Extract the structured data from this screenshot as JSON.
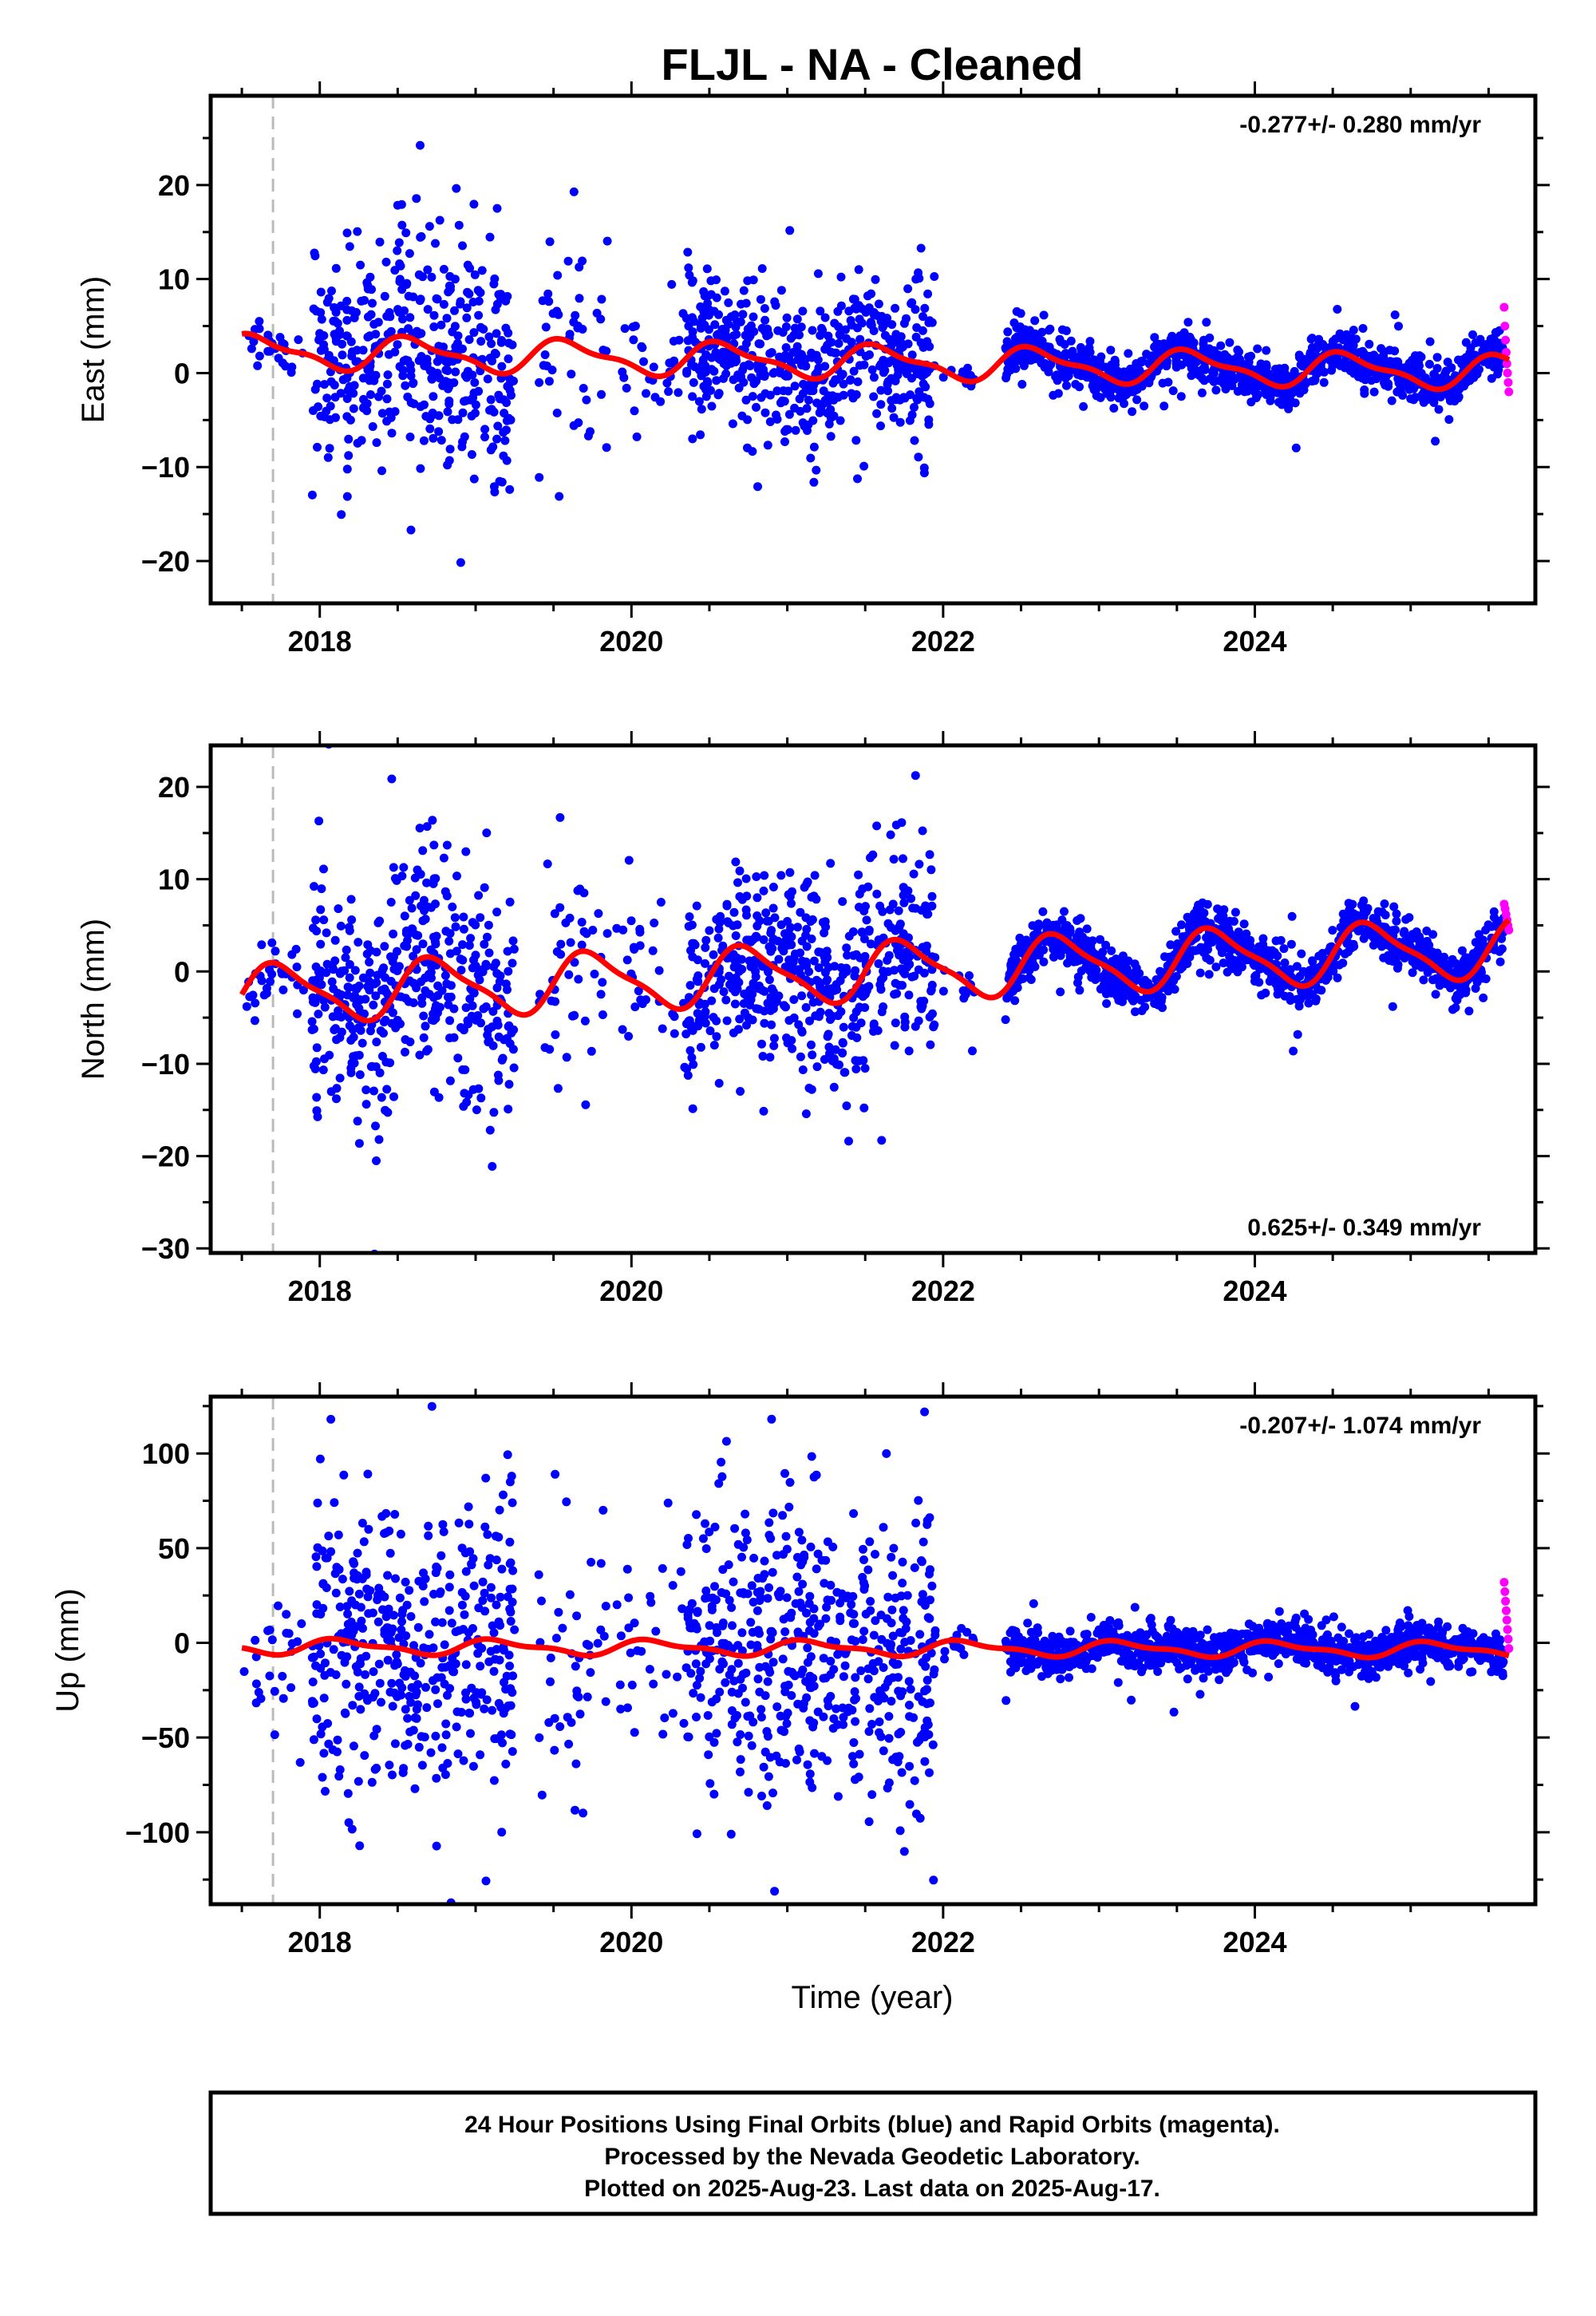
{
  "title": "FLJL  - NA - Cleaned",
  "xlabel": "Time (year)",
  "footer": {
    "line1": "24 Hour Positions Using Final Orbits (blue) and Rapid Orbits (magenta).",
    "line2": "Processed by the Nevada Geodetic Laboratory.",
    "line3": "Plotted on 2025-Aug-23. Last data on 2025-Aug-17."
  },
  "colors": {
    "final": "#0000ff",
    "rapid": "#ff00ff",
    "fit": "#ff0000",
    "marker": "#bbbbbb"
  },
  "chart_data": [
    {
      "type": "scatter",
      "name": "east",
      "ylabel": "East (mm)",
      "rate": "-0.277+/- 0.280 mm/yr",
      "rate_position": "top-right",
      "xlim": [
        2017.3,
        2025.8
      ],
      "ylim": [
        -24.5,
        29.5
      ],
      "xticks": [
        2018,
        2020,
        2022,
        2024
      ],
      "yticks": [
        -20,
        -10,
        0,
        10,
        20
      ],
      "marker_year": 2017.7,
      "fit": {
        "offset": 2.3,
        "trend": -0.277,
        "annual": 1.6,
        "annual_phase": 0.35,
        "semiannual": 0.6
      },
      "segments": [
        {
          "start": 2017.5,
          "end": 2017.9,
          "n": 25,
          "scatter": 1.4
        },
        {
          "start": 2017.95,
          "end": 2019.25,
          "n": 420,
          "scatter": 5.5
        },
        {
          "start": 2019.4,
          "end": 2019.85,
          "n": 45,
          "scatter": 6.5
        },
        {
          "start": 2019.9,
          "end": 2020.35,
          "n": 30,
          "scatter": 3.5
        },
        {
          "start": 2020.35,
          "end": 2021.95,
          "n": 520,
          "scatter": 4.0
        },
        {
          "start": 2022.0,
          "end": 2022.2,
          "n": 12,
          "scatter": 1.5
        },
        {
          "start": 2022.4,
          "end": 2025.6,
          "n": 1100,
          "scatter": 1.2
        }
      ],
      "rapid": {
        "start": 2025.6,
        "end": 2025.63,
        "values": [
          7.0,
          5.0,
          3.5,
          2.2,
          1.0,
          0.0,
          -1.0,
          -2.0
        ]
      }
    },
    {
      "type": "scatter",
      "name": "north",
      "ylabel": "North (mm)",
      "rate": "0.625+/- 0.349 mm/yr",
      "rate_position": "bottom-right",
      "xlim": [
        2017.3,
        2025.8
      ],
      "ylim": [
        -30.5,
        24.5
      ],
      "xticks": [
        2018,
        2020,
        2022,
        2024
      ],
      "yticks": [
        -30,
        -20,
        -10,
        0,
        10,
        20
      ],
      "marker_year": 2017.7,
      "fit": {
        "offset": -2.5,
        "trend": 0.625,
        "annual": 3.0,
        "annual_phase": 0.5,
        "semiannual": 0.8
      },
      "segments": [
        {
          "start": 2017.5,
          "end": 2017.9,
          "n": 30,
          "scatter": 1.8
        },
        {
          "start": 2017.95,
          "end": 2019.25,
          "n": 430,
          "scatter": 6.0
        },
        {
          "start": 2019.4,
          "end": 2019.85,
          "n": 45,
          "scatter": 7.0
        },
        {
          "start": 2019.9,
          "end": 2020.35,
          "n": 30,
          "scatter": 4.0
        },
        {
          "start": 2020.35,
          "end": 2021.95,
          "n": 540,
          "scatter": 5.0
        },
        {
          "start": 2022.0,
          "end": 2022.2,
          "n": 12,
          "scatter": 1.5
        },
        {
          "start": 2022.4,
          "end": 2025.6,
          "n": 1100,
          "scatter": 1.3
        }
      ],
      "rapid": {
        "start": 2025.6,
        "end": 2025.63,
        "values": [
          7.3,
          6.8,
          6.2,
          5.6,
          5.0,
          4.5
        ]
      }
    },
    {
      "type": "scatter",
      "name": "up",
      "ylabel": "Up (mm)",
      "rate": "-0.207+/- 1.074 mm/yr",
      "rate_position": "top-right",
      "xlim": [
        2017.3,
        2025.8
      ],
      "ylim": [
        -138,
        130
      ],
      "xticks": [
        2018,
        2020,
        2022,
        2024
      ],
      "yticks": [
        -100,
        -50,
        0,
        50,
        100
      ],
      "marker_year": 2017.7,
      "fit": {
        "offset": -2.0,
        "trend": -0.207,
        "annual": 3.5,
        "annual_phase": 0.9,
        "semiannual": 1.5
      },
      "segments": [
        {
          "start": 2017.5,
          "end": 2017.9,
          "n": 25,
          "scatter": 18
        },
        {
          "start": 2017.95,
          "end": 2019.25,
          "n": 420,
          "scatter": 38
        },
        {
          "start": 2019.4,
          "end": 2019.85,
          "n": 45,
          "scatter": 45
        },
        {
          "start": 2019.9,
          "end": 2020.35,
          "n": 30,
          "scatter": 30
        },
        {
          "start": 2020.35,
          "end": 2021.95,
          "n": 520,
          "scatter": 38
        },
        {
          "start": 2022.0,
          "end": 2022.2,
          "n": 12,
          "scatter": 5
        },
        {
          "start": 2022.4,
          "end": 2025.6,
          "n": 1100,
          "scatter": 5.5
        }
      ],
      "rapid": {
        "start": 2025.6,
        "end": 2025.63,
        "values": [
          32,
          27,
          22,
          17,
          12,
          7,
          2,
          -3
        ]
      }
    }
  ]
}
